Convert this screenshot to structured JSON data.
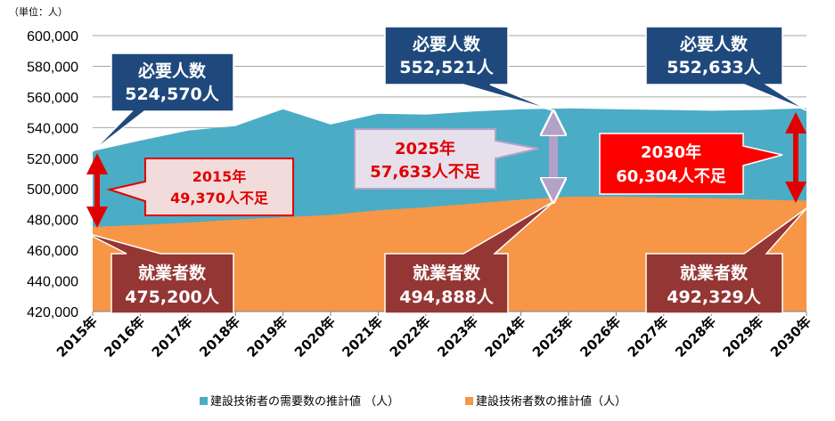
{
  "chart_data": {
    "type": "area",
    "unit_label": "（単位：人）",
    "categories": [
      "2015年",
      "2016年",
      "2017年",
      "2018年",
      "2019年",
      "2020年",
      "2021年",
      "2022年",
      "2023年",
      "2024年",
      "2025年",
      "2026年",
      "2027年",
      "2028年",
      "2029年",
      "2030年"
    ],
    "ylim": [
      420000,
      600000
    ],
    "yticks": [
      "420,000",
      "440,000",
      "460,000",
      "480,000",
      "500,000",
      "520,000",
      "540,000",
      "560,000",
      "580,000",
      "600,000"
    ],
    "grid": true,
    "legend_position": "bottom",
    "series": [
      {
        "name": "建設技術者の需要数の推計値 （人）",
        "color": "#4BACC6",
        "values": [
          524570,
          531500,
          538000,
          541000,
          552000,
          542000,
          549000,
          548500,
          550500,
          552000,
          552521,
          552000,
          551500,
          551000,
          551500,
          552633
        ]
      },
      {
        "name": "建設技術者数の推計値（人）",
        "color": "#F79646",
        "values": [
          475200,
          476500,
          478000,
          480000,
          481500,
          483000,
          486000,
          488000,
          490500,
          493000,
          494888,
          495000,
          494500,
          494000,
          493000,
          492329
        ]
      }
    ],
    "annotations": [
      {
        "id": "demand-2015",
        "lines": [
          "必要人数",
          "524,570人"
        ],
        "fill": "#1F497D"
      },
      {
        "id": "demand-2025",
        "lines": [
          "必要人数",
          "552,521人"
        ],
        "fill": "#1F497D"
      },
      {
        "id": "demand-2030",
        "lines": [
          "必要人数",
          "552,633人"
        ],
        "fill": "#1F497D"
      },
      {
        "id": "workers-2015",
        "lines": [
          "就業者数",
          "475,200人"
        ],
        "fill": "#943634"
      },
      {
        "id": "workers-2025",
        "lines": [
          "就業者数",
          "494,888人"
        ],
        "fill": "#943634"
      },
      {
        "id": "workers-2030",
        "lines": [
          "就業者数",
          "492,329人"
        ],
        "fill": "#943634"
      },
      {
        "id": "gap-2015",
        "lines": [
          "2015年",
          "49,370人不足"
        ]
      },
      {
        "id": "gap-2025",
        "lines": [
          "2025年",
          "57,633人不足"
        ]
      },
      {
        "id": "gap-2030",
        "lines": [
          "2030年",
          "60,304人不足"
        ]
      }
    ]
  }
}
